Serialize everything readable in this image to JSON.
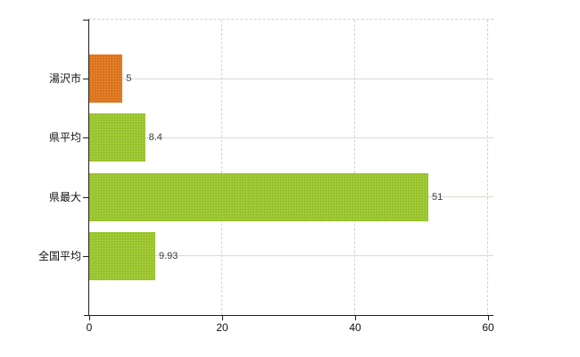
{
  "chart_data": {
    "type": "bar",
    "orientation": "horizontal",
    "title": "",
    "xlabel": "",
    "ylabel": "",
    "categories": [
      "湯沢市",
      "県平均",
      "県最大",
      "全国平均"
    ],
    "values": [
      5,
      8.4,
      51,
      9.93
    ],
    "value_labels": [
      "5",
      "8.4",
      "51",
      "9.93"
    ],
    "bar_colors": [
      "#e0771e",
      "#9cc72e",
      "#9cc72e",
      "#9cc72e"
    ],
    "xlim": [
      0,
      60.8
    ],
    "xticks": [
      0,
      20,
      40,
      60
    ],
    "xtick_labels": [
      "0",
      "20",
      "40",
      "60"
    ],
    "grid": {
      "vertical": "dashed",
      "horizontal": "solid"
    },
    "legend": "none"
  },
  "colors": {
    "background": "#ffffff",
    "axis": "#1f1f1f",
    "h_gridline": "#d7ddd1",
    "v_gridline": "#d2d2d6",
    "value_label": "#3b3b40",
    "tick_label": "#111111",
    "orange_bar": "#e0771e",
    "green_bar": "#9cc72e"
  }
}
